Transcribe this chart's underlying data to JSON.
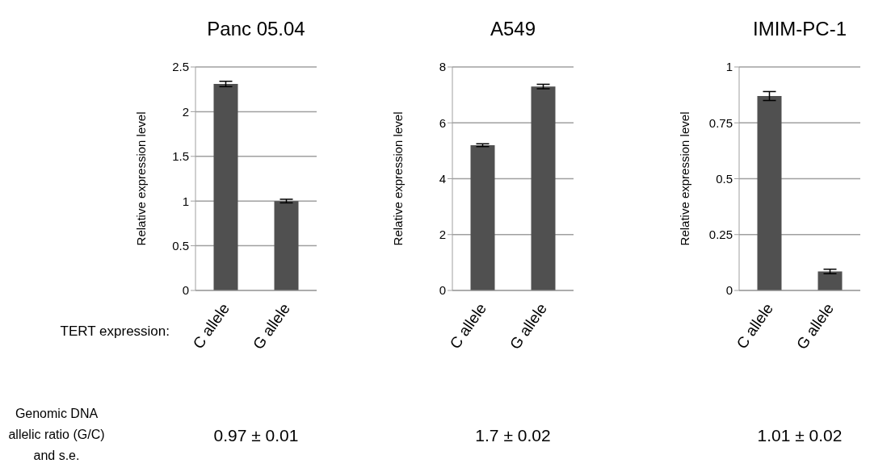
{
  "chart_data": [
    {
      "type": "bar",
      "title": "Panc 05.04",
      "ylabel": "Relative expression level",
      "categories": [
        "C allele",
        "G allele"
      ],
      "values": [
        2.31,
        1.0
      ],
      "errors": [
        0.03,
        0.02
      ],
      "color": "#505050",
      "ylim": [
        0,
        2.5
      ],
      "yticks": [
        0,
        0.5,
        1,
        1.5,
        2,
        2.5
      ],
      "grid": "y",
      "annotations": [
        "TERT expression:",
        "Genomic DNA allelic ratio (G/C) and s.e.",
        "0.97 ± 0.01"
      ]
    },
    {
      "type": "bar",
      "title": "A549",
      "ylabel": "Relative expression level",
      "categories": [
        "C allele",
        "G allele"
      ],
      "values": [
        5.2,
        7.3
      ],
      "errors": [
        0.05,
        0.08
      ],
      "color": "#505050",
      "ylim": [
        0,
        8
      ],
      "yticks": [
        0,
        2,
        4,
        6,
        8
      ],
      "grid": "y",
      "annotations": [
        "1.7 ± 0.02"
      ]
    },
    {
      "type": "bar",
      "title": "IMIM-PC-1",
      "ylabel": "Relative expression level",
      "categories": [
        "C allele",
        "G allele"
      ],
      "values": [
        0.87,
        0.085
      ],
      "errors": [
        0.02,
        0.01
      ],
      "color": "#505050",
      "ylim": [
        0,
        1
      ],
      "yticks": [
        0,
        0.25,
        0.5,
        0.75,
        1
      ],
      "grid": "y",
      "annotations": [
        "1.01 ± 0.02"
      ]
    }
  ]
}
